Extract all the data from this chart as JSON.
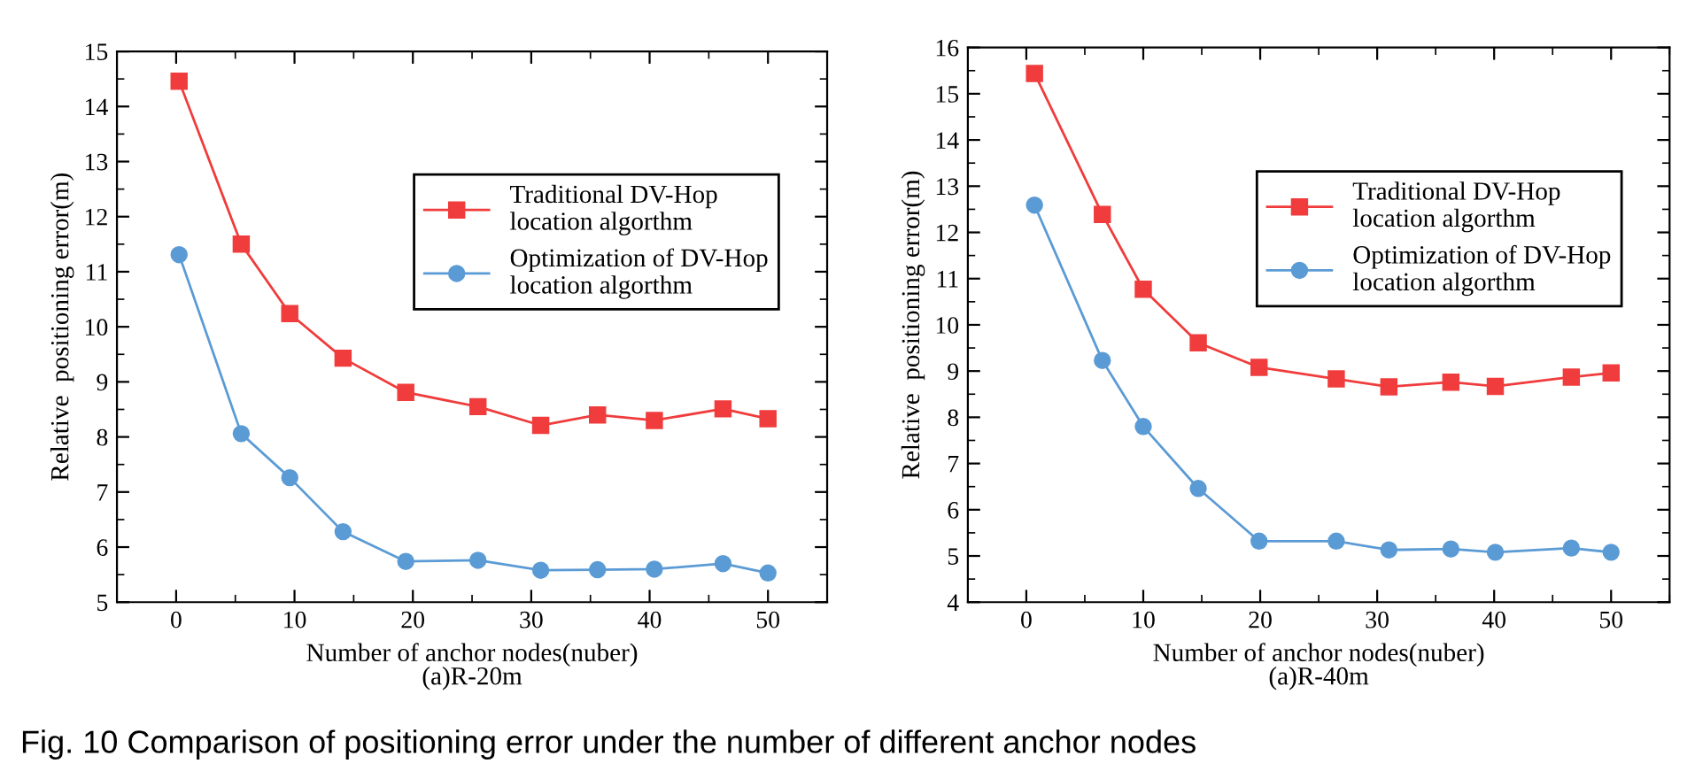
{
  "chart_data": [
    {
      "type": "line",
      "xlabel": "Number of anchor nodes(nuber)\n(a)R-20m",
      "ylabel": "Relative  positioning error(m)",
      "x": [
        0.25,
        5.5,
        9.6,
        14.1,
        19.4,
        25.5,
        30.8,
        35.6,
        40.4,
        46.2,
        50
      ],
      "series": [
        {
          "name": "Traditional DV-Hop\nlocation algorthm",
          "color": "#f03c3c",
          "marker": "square",
          "values": [
            14.46,
            11.5,
            10.24,
            9.43,
            8.81,
            8.55,
            8.21,
            8.4,
            8.3,
            8.51,
            8.33
          ]
        },
        {
          "name": "Optimization of DV-Hop\nlocation algorthm",
          "color": "#5b9bd5",
          "marker": "circle",
          "values": [
            11.31,
            8.06,
            7.26,
            6.28,
            5.74,
            5.76,
            5.58,
            5.59,
            5.6,
            5.7,
            5.53
          ]
        }
      ],
      "xlim": [
        -5,
        55
      ],
      "xticks": [
        0,
        10,
        20,
        30,
        40,
        50
      ],
      "ylim": [
        5,
        15
      ],
      "yticks": [
        5,
        6,
        7,
        8,
        9,
        10,
        11,
        12,
        13,
        14,
        15
      ],
      "legend": "top right",
      "grid": false,
      "line_style": "solid",
      "annotations": [
        "Fig. 10 Comparison of positioning error under the number of different anchor nodes"
      ]
    },
    {
      "type": "line",
      "xlabel": "Number of anchor nodes(nuber)\n(a)R-40m",
      "ylabel": "Relative  positioning error(m)",
      "x": [
        0.7,
        6.5,
        10,
        14.7,
        19.9,
        26.5,
        31,
        36.3,
        40.1,
        46.6,
        50
      ],
      "series": [
        {
          "name": "Traditional DV-Hop\nlocation algorthm",
          "color": "#f03c3c",
          "marker": "square",
          "values": [
            15.44,
            12.39,
            10.77,
            9.61,
            9.08,
            8.83,
            8.66,
            8.76,
            8.67,
            8.87,
            8.96
          ]
        },
        {
          "name": "Optimization of DV-Hop\nlocation algorthm",
          "color": "#5b9bd5",
          "marker": "circle",
          "values": [
            12.59,
            9.23,
            7.8,
            6.46,
            5.32,
            5.32,
            5.13,
            5.15,
            5.08,
            5.17,
            5.08
          ]
        }
      ],
      "xlim": [
        -5,
        55
      ],
      "xticks": [
        0,
        10,
        20,
        30,
        40,
        50
      ],
      "ylim": [
        4,
        16
      ],
      "yticks": [
        4,
        5,
        6,
        7,
        8,
        9,
        10,
        11,
        12,
        13,
        14,
        15,
        16
      ],
      "legend": "top right",
      "grid": false,
      "line_style": "solid"
    }
  ]
}
